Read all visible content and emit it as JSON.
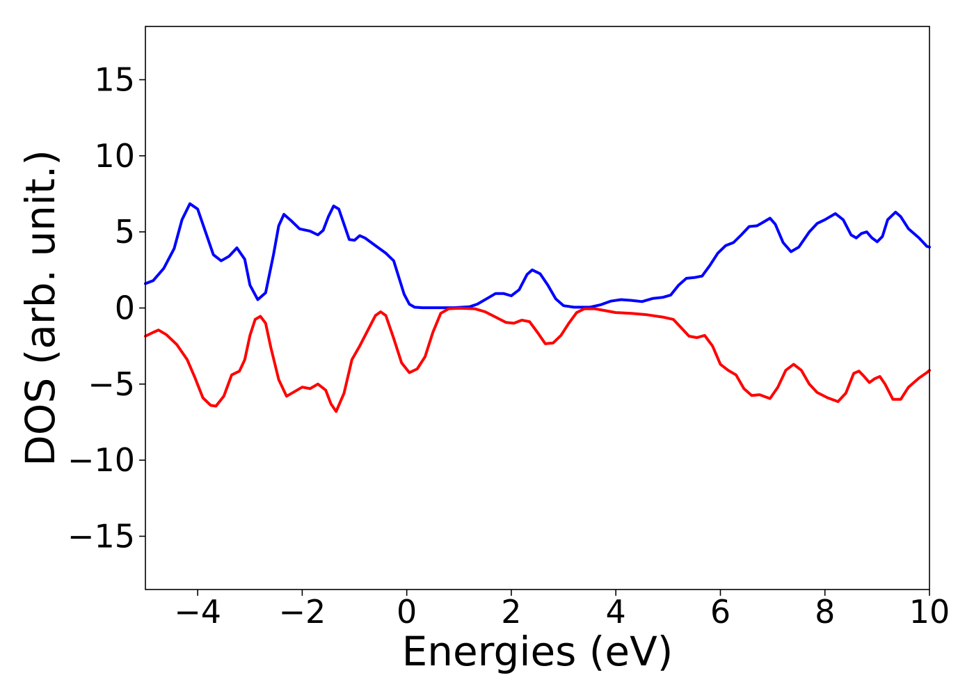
{
  "chart_data": {
    "type": "line",
    "title": "",
    "xlabel": "Energies (eV)",
    "ylabel": "DOS (arb. unit.)",
    "xlim": [
      -5,
      10
    ],
    "ylim": [
      -18.5,
      18.5
    ],
    "xticks": [
      -4,
      -2,
      0,
      2,
      4,
      6,
      8,
      10
    ],
    "xtick_labels": [
      "−4",
      "−2",
      "0",
      "2",
      "4",
      "6",
      "8",
      "10"
    ],
    "yticks": [
      -15,
      -10,
      -5,
      0,
      5,
      10,
      15
    ],
    "ytick_labels": [
      "−15",
      "−10",
      "−5",
      "0",
      "5",
      "10",
      "15"
    ],
    "grid": false,
    "legend": "none",
    "series": [
      {
        "color": "#0000ff",
        "points": [
          [
            -5.0,
            1.6
          ],
          [
            -4.85,
            1.8
          ],
          [
            -4.65,
            2.6
          ],
          [
            -4.45,
            3.9
          ],
          [
            -4.3,
            5.8
          ],
          [
            -4.15,
            6.85
          ],
          [
            -4.0,
            6.5
          ],
          [
            -3.85,
            5.0
          ],
          [
            -3.7,
            3.5
          ],
          [
            -3.55,
            3.1
          ],
          [
            -3.4,
            3.4
          ],
          [
            -3.25,
            3.95
          ],
          [
            -3.1,
            3.2
          ],
          [
            -3.0,
            1.5
          ],
          [
            -2.85,
            0.55
          ],
          [
            -2.7,
            1.0
          ],
          [
            -2.55,
            3.5
          ],
          [
            -2.45,
            5.4
          ],
          [
            -2.35,
            6.15
          ],
          [
            -2.2,
            5.7
          ],
          [
            -2.05,
            5.2
          ],
          [
            -1.85,
            5.05
          ],
          [
            -1.7,
            4.8
          ],
          [
            -1.6,
            5.1
          ],
          [
            -1.5,
            6.0
          ],
          [
            -1.4,
            6.7
          ],
          [
            -1.3,
            6.5
          ],
          [
            -1.2,
            5.5
          ],
          [
            -1.1,
            4.5
          ],
          [
            -1.0,
            4.45
          ],
          [
            -0.9,
            4.75
          ],
          [
            -0.8,
            4.6
          ],
          [
            -0.6,
            4.1
          ],
          [
            -0.4,
            3.6
          ],
          [
            -0.25,
            3.1
          ],
          [
            -0.15,
            2.0
          ],
          [
            -0.05,
            0.9
          ],
          [
            0.05,
            0.25
          ],
          [
            0.15,
            0.05
          ],
          [
            0.3,
            0.02
          ],
          [
            0.6,
            0.02
          ],
          [
            0.9,
            0.02
          ],
          [
            1.2,
            0.08
          ],
          [
            1.35,
            0.25
          ],
          [
            1.55,
            0.65
          ],
          [
            1.7,
            0.95
          ],
          [
            1.85,
            0.95
          ],
          [
            2.0,
            0.8
          ],
          [
            2.15,
            1.2
          ],
          [
            2.3,
            2.2
          ],
          [
            2.4,
            2.5
          ],
          [
            2.55,
            2.25
          ],
          [
            2.7,
            1.5
          ],
          [
            2.85,
            0.6
          ],
          [
            3.0,
            0.15
          ],
          [
            3.2,
            0.05
          ],
          [
            3.5,
            0.05
          ],
          [
            3.7,
            0.2
          ],
          [
            3.9,
            0.45
          ],
          [
            4.1,
            0.55
          ],
          [
            4.3,
            0.5
          ],
          [
            4.5,
            0.42
          ],
          [
            4.7,
            0.62
          ],
          [
            4.9,
            0.7
          ],
          [
            5.05,
            0.85
          ],
          [
            5.2,
            1.5
          ],
          [
            5.35,
            1.95
          ],
          [
            5.5,
            2.0
          ],
          [
            5.65,
            2.1
          ],
          [
            5.8,
            2.8
          ],
          [
            5.95,
            3.6
          ],
          [
            6.1,
            4.1
          ],
          [
            6.25,
            4.3
          ],
          [
            6.4,
            4.8
          ],
          [
            6.55,
            5.35
          ],
          [
            6.7,
            5.4
          ],
          [
            6.8,
            5.6
          ],
          [
            6.95,
            5.9
          ],
          [
            7.05,
            5.5
          ],
          [
            7.2,
            4.3
          ],
          [
            7.35,
            3.7
          ],
          [
            7.5,
            4.0
          ],
          [
            7.7,
            5.0
          ],
          [
            7.85,
            5.55
          ],
          [
            8.0,
            5.8
          ],
          [
            8.2,
            6.2
          ],
          [
            8.35,
            5.8
          ],
          [
            8.5,
            4.8
          ],
          [
            8.6,
            4.6
          ],
          [
            8.7,
            4.9
          ],
          [
            8.8,
            5.0
          ],
          [
            8.9,
            4.6
          ],
          [
            9.0,
            4.35
          ],
          [
            9.1,
            4.7
          ],
          [
            9.2,
            5.8
          ],
          [
            9.35,
            6.3
          ],
          [
            9.45,
            6.0
          ],
          [
            9.6,
            5.2
          ],
          [
            9.8,
            4.6
          ],
          [
            9.95,
            4.05
          ],
          [
            10.0,
            4.0
          ]
        ]
      },
      {
        "color": "#ff0000",
        "points": [
          [
            -5.0,
            -1.85
          ],
          [
            -4.85,
            -1.6
          ],
          [
            -4.75,
            -1.45
          ],
          [
            -4.6,
            -1.75
          ],
          [
            -4.4,
            -2.4
          ],
          [
            -4.2,
            -3.4
          ],
          [
            -4.05,
            -4.6
          ],
          [
            -3.9,
            -5.9
          ],
          [
            -3.75,
            -6.4
          ],
          [
            -3.65,
            -6.45
          ],
          [
            -3.5,
            -5.8
          ],
          [
            -3.35,
            -4.4
          ],
          [
            -3.2,
            -4.15
          ],
          [
            -3.1,
            -3.4
          ],
          [
            -3.0,
            -1.8
          ],
          [
            -2.9,
            -0.75
          ],
          [
            -2.8,
            -0.55
          ],
          [
            -2.7,
            -1.0
          ],
          [
            -2.6,
            -2.6
          ],
          [
            -2.45,
            -4.7
          ],
          [
            -2.3,
            -5.8
          ],
          [
            -2.15,
            -5.5
          ],
          [
            -2.0,
            -5.2
          ],
          [
            -1.85,
            -5.3
          ],
          [
            -1.7,
            -5.0
          ],
          [
            -1.55,
            -5.4
          ],
          [
            -1.45,
            -6.3
          ],
          [
            -1.35,
            -6.8
          ],
          [
            -1.2,
            -5.6
          ],
          [
            -1.05,
            -3.4
          ],
          [
            -0.9,
            -2.5
          ],
          [
            -0.75,
            -1.5
          ],
          [
            -0.6,
            -0.5
          ],
          [
            -0.5,
            -0.25
          ],
          [
            -0.4,
            -0.5
          ],
          [
            -0.25,
            -2.0
          ],
          [
            -0.1,
            -3.6
          ],
          [
            0.05,
            -4.25
          ],
          [
            0.2,
            -4.0
          ],
          [
            0.35,
            -3.2
          ],
          [
            0.5,
            -1.6
          ],
          [
            0.65,
            -0.35
          ],
          [
            0.8,
            -0.05
          ],
          [
            1.0,
            -0.02
          ],
          [
            1.3,
            -0.05
          ],
          [
            1.5,
            -0.25
          ],
          [
            1.7,
            -0.6
          ],
          [
            1.9,
            -0.95
          ],
          [
            2.05,
            -1.0
          ],
          [
            2.2,
            -0.8
          ],
          [
            2.35,
            -0.9
          ],
          [
            2.5,
            -1.6
          ],
          [
            2.65,
            -2.35
          ],
          [
            2.8,
            -2.3
          ],
          [
            2.95,
            -1.8
          ],
          [
            3.1,
            -1.0
          ],
          [
            3.25,
            -0.3
          ],
          [
            3.4,
            -0.05
          ],
          [
            3.6,
            -0.05
          ],
          [
            3.8,
            -0.18
          ],
          [
            4.0,
            -0.3
          ],
          [
            4.3,
            -0.35
          ],
          [
            4.6,
            -0.45
          ],
          [
            4.9,
            -0.6
          ],
          [
            5.1,
            -0.75
          ],
          [
            5.25,
            -1.3
          ],
          [
            5.4,
            -1.85
          ],
          [
            5.55,
            -1.95
          ],
          [
            5.7,
            -1.8
          ],
          [
            5.85,
            -2.5
          ],
          [
            6.0,
            -3.7
          ],
          [
            6.15,
            -4.1
          ],
          [
            6.3,
            -4.4
          ],
          [
            6.45,
            -5.3
          ],
          [
            6.6,
            -5.75
          ],
          [
            6.75,
            -5.7
          ],
          [
            6.95,
            -5.95
          ],
          [
            7.1,
            -5.2
          ],
          [
            7.25,
            -4.1
          ],
          [
            7.4,
            -3.7
          ],
          [
            7.55,
            -4.1
          ],
          [
            7.7,
            -5.0
          ],
          [
            7.85,
            -5.55
          ],
          [
            8.05,
            -5.9
          ],
          [
            8.25,
            -6.15
          ],
          [
            8.4,
            -5.6
          ],
          [
            8.55,
            -4.3
          ],
          [
            8.65,
            -4.15
          ],
          [
            8.75,
            -4.5
          ],
          [
            8.85,
            -4.9
          ],
          [
            8.95,
            -4.65
          ],
          [
            9.05,
            -4.5
          ],
          [
            9.15,
            -5.0
          ],
          [
            9.3,
            -6.0
          ],
          [
            9.45,
            -6.0
          ],
          [
            9.6,
            -5.2
          ],
          [
            9.8,
            -4.6
          ],
          [
            9.95,
            -4.25
          ],
          [
            10.0,
            -4.1
          ]
        ]
      }
    ]
  }
}
